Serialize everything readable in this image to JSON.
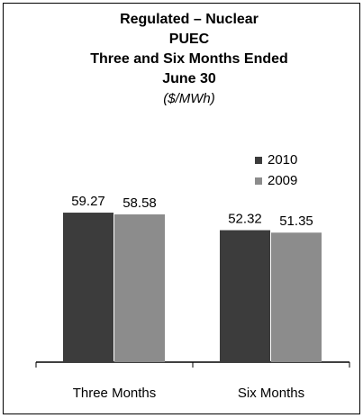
{
  "chart_data": {
    "type": "bar",
    "title": [
      "Regulated – Nuclear",
      "PUEC",
      "Three and Six Months Ended",
      "June 30"
    ],
    "subtitle": "($/MWh)",
    "categories": [
      "Three Months",
      "Six Months"
    ],
    "series": [
      {
        "name": "2010",
        "color": "#3c3c3c",
        "values": [
          59.27,
          52.32
        ]
      },
      {
        "name": "2009",
        "color": "#8c8c8c",
        "values": [
          58.58,
          51.35
        ]
      }
    ]
  }
}
